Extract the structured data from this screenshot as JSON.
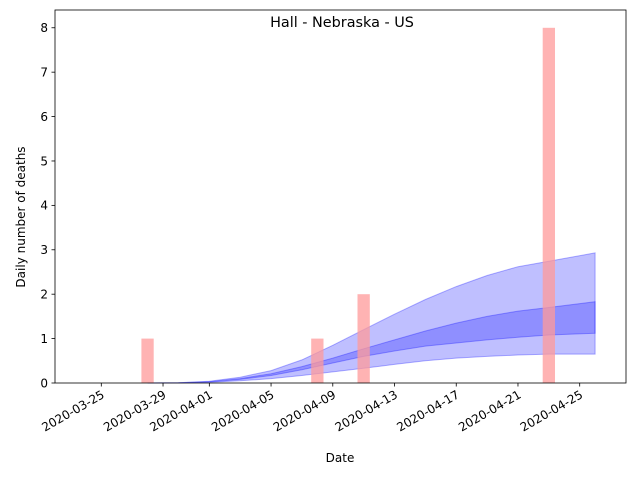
{
  "chart_data": {
    "type": "bar",
    "title": "Hall - Nebraska - US",
    "xlabel": "Date",
    "ylabel": "Daily number of deaths",
    "x_range": [
      "2020-03-22",
      "2020-04-28"
    ],
    "ylim": [
      0,
      8.4
    ],
    "grid": false,
    "legend": "none",
    "x_ticks": [
      "2020-03-25",
      "2020-03-29",
      "2020-04-01",
      "2020-04-05",
      "2020-04-09",
      "2020-04-13",
      "2020-04-17",
      "2020-04-21",
      "2020-04-25"
    ],
    "y_ticks": [
      0,
      1,
      2,
      3,
      4,
      5,
      6,
      7,
      8
    ],
    "bars": {
      "color": "#ff9999",
      "dates": [
        "2020-03-28",
        "2020-04-08",
        "2020-04-11",
        "2020-04-23"
      ],
      "values": [
        1,
        1,
        2,
        8
      ]
    },
    "bands": {
      "color": "#0000ff",
      "dates": [
        "2020-03-28",
        "2020-03-30",
        "2020-04-01",
        "2020-04-03",
        "2020-04-05",
        "2020-04-07",
        "2020-04-09",
        "2020-04-11",
        "2020-04-13",
        "2020-04-15",
        "2020-04-17",
        "2020-04-19",
        "2020-04-21",
        "2020-04-23",
        "2020-04-26"
      ],
      "outer_low": [
        0,
        0.003,
        0.015,
        0.05,
        0.1,
        0.17,
        0.25,
        0.33,
        0.42,
        0.5,
        0.56,
        0.6,
        0.63,
        0.65,
        0.65
      ],
      "outer_high": [
        0,
        0.005,
        0.04,
        0.13,
        0.28,
        0.52,
        0.85,
        1.2,
        1.55,
        1.88,
        2.17,
        2.42,
        2.62,
        2.74,
        2.93
      ],
      "inner_low": [
        0,
        0.004,
        0.025,
        0.08,
        0.17,
        0.3,
        0.45,
        0.6,
        0.72,
        0.83,
        0.9,
        0.97,
        1.03,
        1.08,
        1.12
      ],
      "inner_high": [
        0,
        0.004,
        0.03,
        0.1,
        0.21,
        0.37,
        0.56,
        0.77,
        0.97,
        1.17,
        1.35,
        1.5,
        1.62,
        1.7,
        1.83
      ]
    }
  }
}
